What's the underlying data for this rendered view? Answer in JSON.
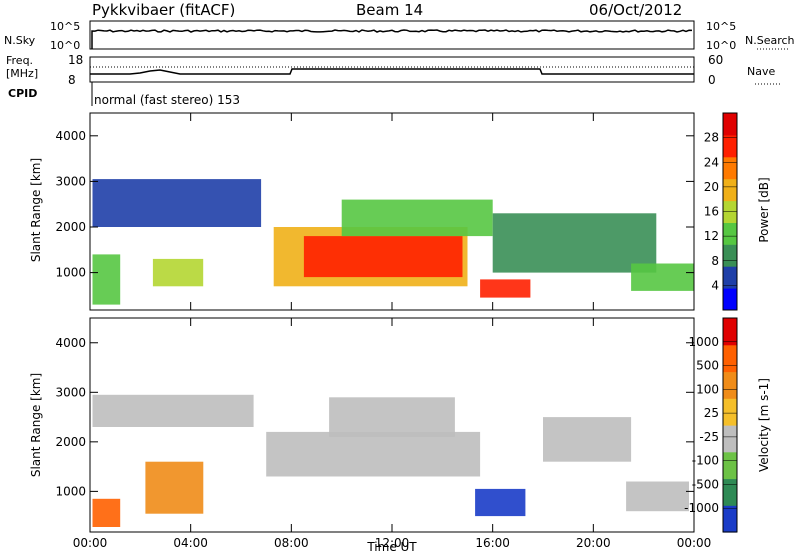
{
  "header": {
    "station": "Pykkvibaer (fitACF)",
    "beam": "Beam 14",
    "date": "06/Oct/2012"
  },
  "top_panel": {
    "left_label": "N.Sky",
    "right_label": "N.Search",
    "left_ticks": [
      "10^5",
      "10^0"
    ],
    "right_ticks": [
      "10^5",
      "10^0"
    ]
  },
  "freq_panel": {
    "left_label_1": "Freq.",
    "left_label_2": "[MHz]",
    "right_label": "Nave",
    "left_ticks": [
      "18",
      "8"
    ],
    "right_ticks": [
      "60",
      "0"
    ],
    "cpid_label": "CPID",
    "cpid_text": "normal (fast stereo) 153"
  },
  "chart_data": [
    {
      "type": "heatmap",
      "title": "",
      "quantity": "Power",
      "ylabel": "Slant Range [km]",
      "ylim": [
        180,
        4500
      ],
      "y_ticks": [
        "4000",
        "3000",
        "2000",
        "1000"
      ],
      "colorbar_label": "Power [dB]",
      "colorbar_ticks": [
        "28",
        "24",
        "20",
        "16",
        "12",
        "8",
        "4"
      ],
      "colorbar_colors": [
        "#0000ff",
        "#1f3fa8",
        "#3a8f56",
        "#56c742",
        "#b4d632",
        "#f0b018",
        "#ff7a00",
        "#ff2000",
        "#e00000"
      ],
      "regions": [
        {
          "x": [
            7.3,
            15.0
          ],
          "y": [
            700,
            2000
          ],
          "level": 5
        },
        {
          "x": [
            8.5,
            14.8
          ],
          "y": [
            900,
            1800
          ],
          "level": 7
        },
        {
          "x": [
            15.5,
            17.5
          ],
          "y": [
            450,
            850
          ],
          "level": 7
        },
        {
          "x": [
            10.0,
            16.0
          ],
          "y": [
            1800,
            2600
          ],
          "level": 3
        },
        {
          "x": [
            0.1,
            6.8
          ],
          "y": [
            2000,
            3050
          ],
          "level": 1
        },
        {
          "x": [
            16.0,
            22.5
          ],
          "y": [
            1000,
            2300
          ],
          "level": 2
        },
        {
          "x": [
            0.1,
            1.2
          ],
          "y": [
            300,
            1400
          ],
          "level": 3
        },
        {
          "x": [
            2.5,
            4.5
          ],
          "y": [
            700,
            1300
          ],
          "level": 4
        },
        {
          "x": [
            21.5,
            24.0
          ],
          "y": [
            600,
            1200
          ],
          "level": 3
        }
      ]
    },
    {
      "type": "heatmap",
      "title": "",
      "quantity": "Velocity",
      "xlabel": "Time UT",
      "ylabel": "Slant Range [km]",
      "ylim": [
        180,
        4500
      ],
      "xlim": [
        0,
        24
      ],
      "x_ticks": [
        "00:00",
        "04:00",
        "08:00",
        "12:00",
        "16:00",
        "20:00",
        "00:00"
      ],
      "y_ticks": [
        "4000",
        "3000",
        "2000",
        "1000"
      ],
      "colorbar_label": "Velocity [m s-1]",
      "colorbar_ticks": [
        "1000",
        "500",
        "100",
        "25",
        "-25",
        "-100",
        "-500",
        "-1000"
      ],
      "colorbar_colors": [
        "#1a3cc8",
        "#2e8a55",
        "#6cc245",
        "#bebebe",
        "#f5bf2a",
        "#f08c18",
        "#ff6000",
        "#e00000"
      ],
      "regions": [
        {
          "x": [
            7.0,
            15.5
          ],
          "y": [
            1300,
            2200
          ],
          "level": 3
        },
        {
          "x": [
            0.1,
            6.5
          ],
          "y": [
            2300,
            2950
          ],
          "level": 3
        },
        {
          "x": [
            9.5,
            14.5
          ],
          "y": [
            2100,
            2900
          ],
          "level": 3
        },
        {
          "x": [
            15.3,
            17.3
          ],
          "y": [
            500,
            1050
          ],
          "level": 0
        },
        {
          "x": [
            0.1,
            1.2
          ],
          "y": [
            280,
            850
          ],
          "level": 6
        },
        {
          "x": [
            2.2,
            4.5
          ],
          "y": [
            550,
            1600
          ],
          "level": 5
        },
        {
          "x": [
            18.0,
            21.5
          ],
          "y": [
            1600,
            2500
          ],
          "level": 3
        },
        {
          "x": [
            21.3,
            23.8
          ],
          "y": [
            600,
            1200
          ],
          "level": 3
        }
      ]
    }
  ]
}
